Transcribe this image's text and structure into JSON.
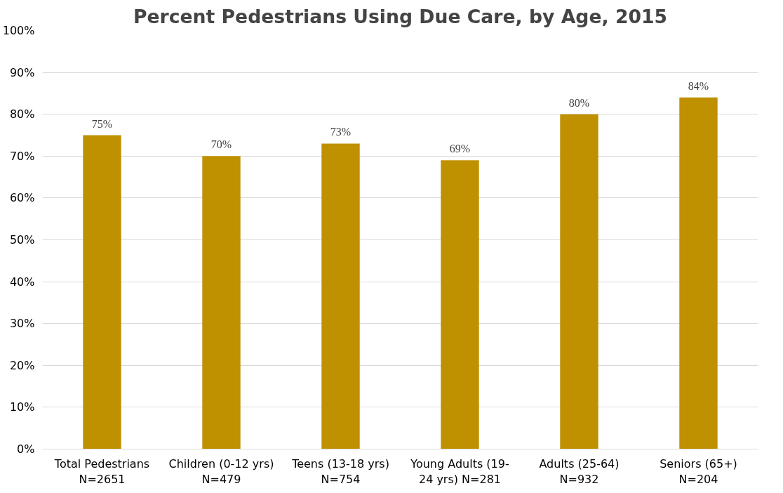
{
  "chart_data": {
    "type": "bar",
    "title": "Percent Pedestrians Using Due Care, by Age, 2015",
    "categories": [
      "Total Pedestrians\nN=2651",
      "Children (0-12 yrs)\nN=479",
      "Teens (13-18 yrs)\nN=754",
      "Young Adults (19-\n24 yrs) N=281",
      "Adults (25-64)\nN=932",
      "Seniors (65+)\nN=204"
    ],
    "values": [
      75,
      70,
      73,
      69,
      80,
      84
    ],
    "value_labels": [
      "75%",
      "70%",
      "73%",
      "69%",
      "80%",
      "84%"
    ],
    "color": "#bf9000",
    "ylim": [
      0,
      100
    ],
    "yticks": [
      {
        "value": 0,
        "label": "0%"
      },
      {
        "value": 10,
        "label": "10%"
      },
      {
        "value": 20,
        "label": "20%"
      },
      {
        "value": 30,
        "label": "30%"
      },
      {
        "value": 40,
        "label": "40%"
      },
      {
        "value": 50,
        "label": "50%"
      },
      {
        "value": 60,
        "label": "60%"
      },
      {
        "value": 70,
        "label": "70%"
      },
      {
        "value": 80,
        "label": "80%"
      },
      {
        "value": 90,
        "label": "90%"
      },
      {
        "value": 100,
        "label": "100%"
      }
    ],
    "grid": "y"
  }
}
